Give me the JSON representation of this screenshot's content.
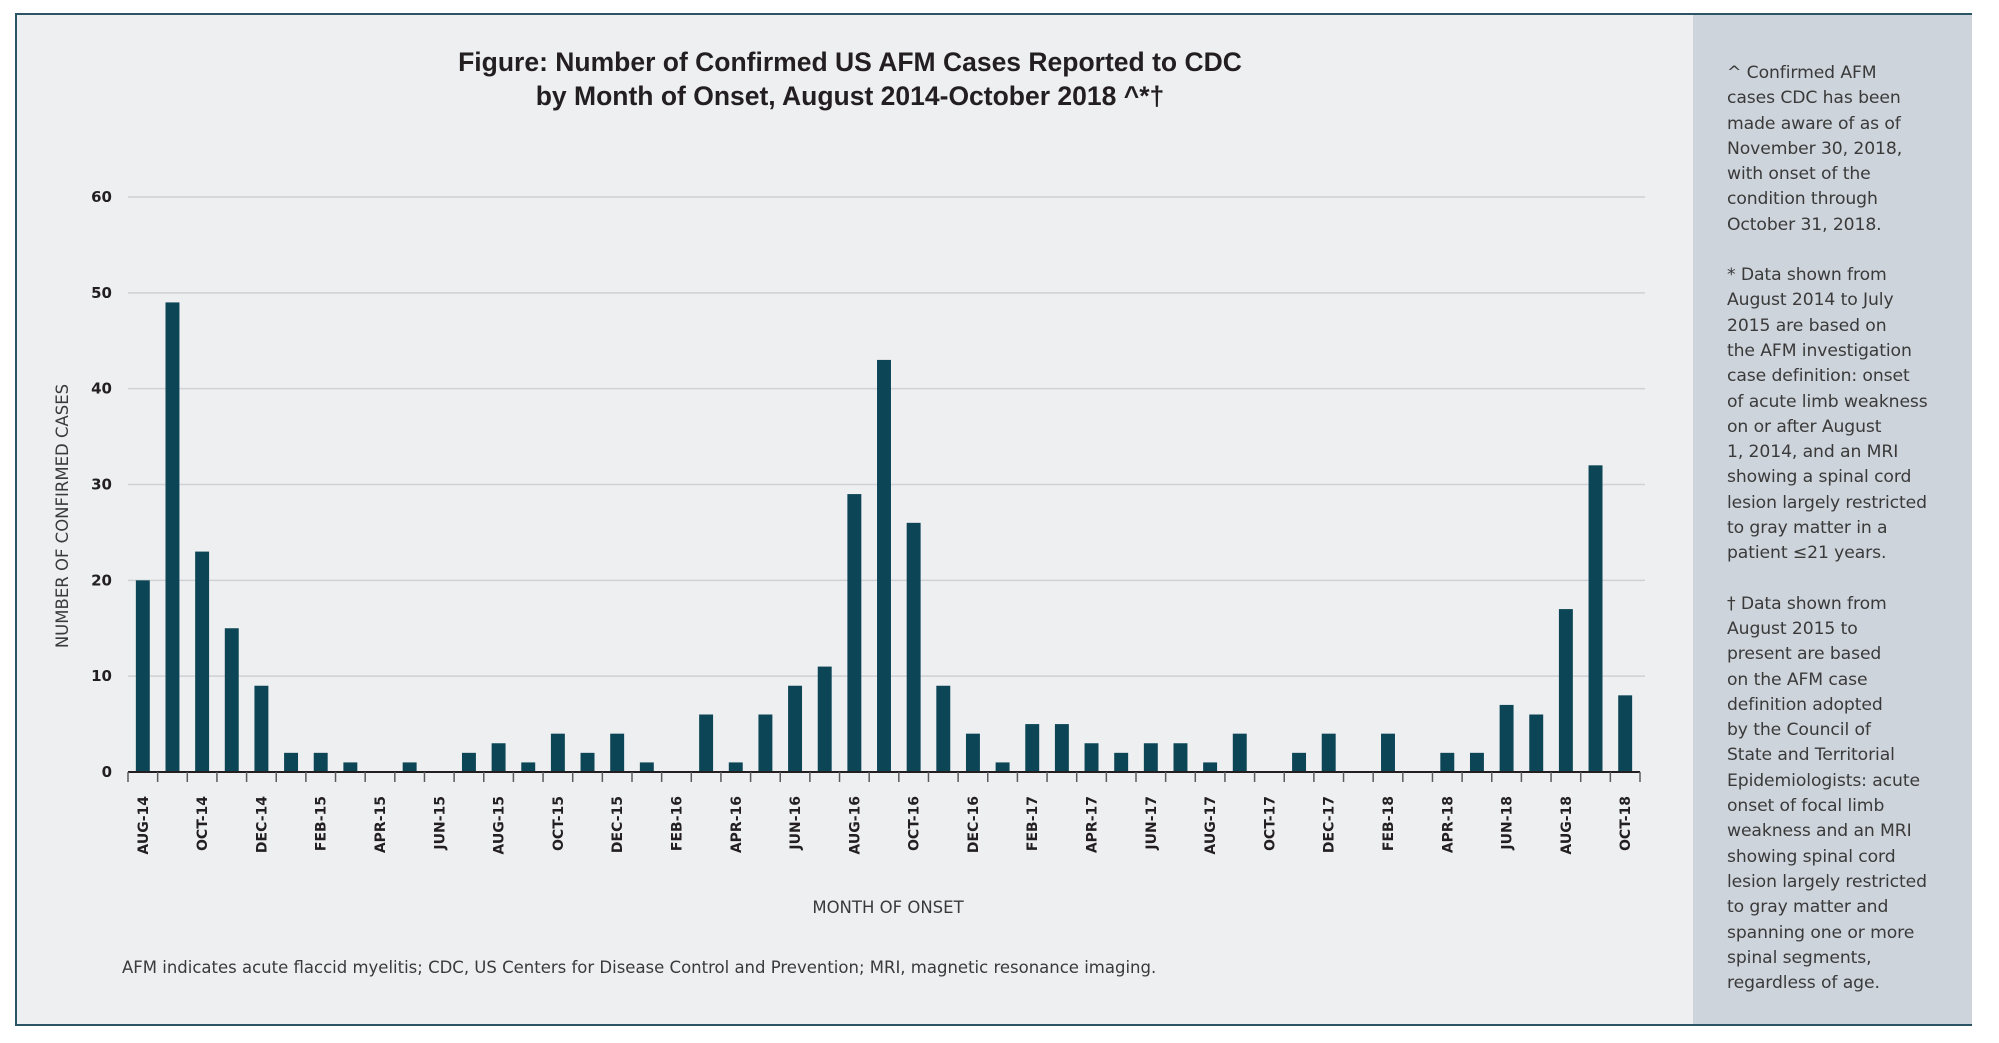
{
  "colors": {
    "bar": "#0b4556",
    "frame_border": "#2b5566",
    "background": "#eeeff1",
    "side_panel": "#ced4db",
    "gridline": "#cfd1d4",
    "axis": "#231f20"
  },
  "chart_data": {
    "type": "bar",
    "title_lines": [
      "Figure: Number of Confirmed US AFM Cases Reported to CDC",
      "by Month of Onset, August 2014-October 2018 ^*†"
    ],
    "xlabel": "MONTH OF ONSET",
    "ylabel": "NUMBER OF CONFIRMED CASES",
    "ylim": [
      0,
      60
    ],
    "yticks": [
      0,
      10,
      20,
      30,
      40,
      50,
      60
    ],
    "grid": true,
    "legend": "none",
    "categories": [
      "AUG-14",
      "SEP-14",
      "OCT-14",
      "NOV-14",
      "DEC-14",
      "JAN-15",
      "FEB-15",
      "MAR-15",
      "APR-15",
      "MAY-15",
      "JUN-15",
      "JUL-15",
      "AUG-15",
      "SEP-15",
      "OCT-15",
      "NOV-15",
      "DEC-15",
      "JAN-16",
      "FEB-16",
      "MAR-16",
      "APR-16",
      "MAY-16",
      "JUN-16",
      "JUL-16",
      "AUG-16",
      "SEP-16",
      "OCT-16",
      "NOV-16",
      "DEC-16",
      "JAN-17",
      "FEB-17",
      "MAR-17",
      "APR-17",
      "MAY-17",
      "JUN-17",
      "JUL-17",
      "AUG-17",
      "SEP-17",
      "OCT-17",
      "NOV-17",
      "DEC-17",
      "JAN-18",
      "FEB-18",
      "MAR-18",
      "APR-18",
      "MAY-18",
      "JUN-18",
      "JUL-18",
      "AUG-18",
      "SEP-18",
      "OCT-18"
    ],
    "labeled_categories": [
      "AUG-14",
      "OCT-14",
      "DEC-14",
      "FEB-15",
      "APR-15",
      "JUN-15",
      "AUG-15",
      "OCT-15",
      "DEC-15",
      "FEB-16",
      "APR-16",
      "JUN-16",
      "AUG-16",
      "OCT-16",
      "DEC-16",
      "FEB-17",
      "APR-17",
      "JUN-17",
      "AUG-17",
      "OCT-17",
      "DEC-17",
      "FEB-18",
      "APR-18",
      "JUN-18",
      "AUG-18",
      "OCT-18"
    ],
    "values": [
      20,
      49,
      23,
      15,
      9,
      2,
      2,
      1,
      0,
      1,
      0,
      2,
      3,
      1,
      4,
      2,
      4,
      1,
      0,
      6,
      1,
      6,
      9,
      11,
      29,
      43,
      26,
      9,
      4,
      1,
      5,
      5,
      3,
      2,
      3,
      3,
      1,
      4,
      0,
      2,
      4,
      0,
      4,
      0,
      2,
      2,
      7,
      6,
      17,
      32,
      8
    ]
  },
  "side_notes": [
    "^ Confirmed AFM\ncases CDC has been\nmade aware of as of\nNovember 30, 2018,\nwith onset of the\ncondition through\nOctober 31, 2018.",
    "* Data shown from\nAugust 2014 to July\n2015 are based on\nthe AFM investigation\ncase definition: onset\nof acute limb weakness\non or after August\n1, 2014, and an MRI\nshowing a spinal cord\nlesion largely restricted\nto gray matter in a\npatient ≤21 years.",
    "† Data shown from\nAugust 2015 to\npresent are based\non the AFM case\ndefinition adopted\nby the Council of\nState and Territorial\nEpidemiologists: acute\nonset of focal limb\nweakness and an MRI\nshowing spinal cord\nlesion largely restricted\nto gray matter and\nspanning one or more\nspinal segments,\nregardless of age."
  ],
  "footnote": "AFM indicates acute flaccid myelitis; CDC, US Centers for Disease Control and Prevention; MRI, magnetic resonance imaging."
}
